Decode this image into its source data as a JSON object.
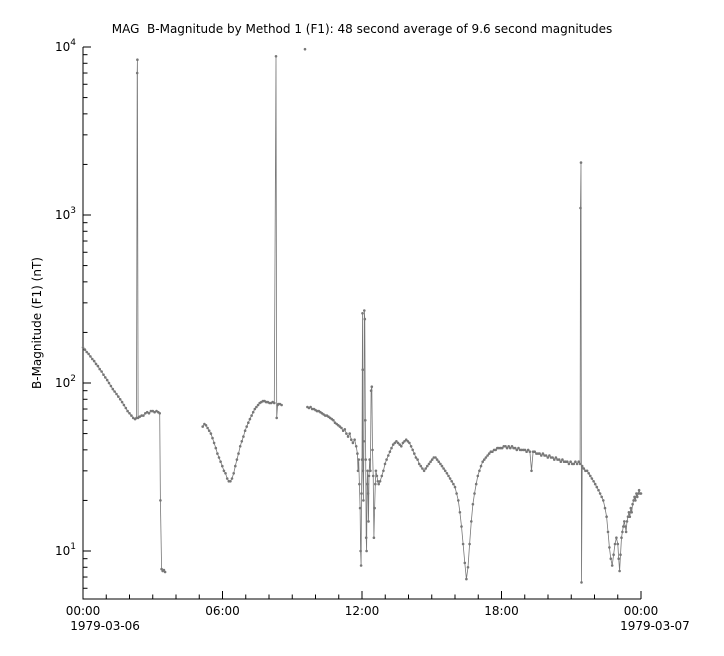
{
  "chart_data": {
    "type": "line",
    "title": "MAG  B-Magnitude by Method 1 (F1): 48 second average of 9.6 second magnitudes",
    "ylabel": "B-Magnitude (F1) (nT)",
    "y_scale": "log",
    "ylim": [
      5.2,
      10000
    ],
    "xlim_hours": [
      0,
      24
    ],
    "grid": false,
    "legend": "none",
    "series_color": "#777777",
    "axis_color": "#000000",
    "y_tick_base": "10",
    "y_tick_exponents": [
      1,
      2,
      3,
      4
    ],
    "x_ticks": [
      {
        "t": 0,
        "label": "00:00"
      },
      {
        "t": 6,
        "label": "06:00"
      },
      {
        "t": 12,
        "label": "12:00"
      },
      {
        "t": 18,
        "label": "18:00"
      },
      {
        "t": 24,
        "label": "00:00"
      }
    ],
    "x_dates": [
      {
        "label": "1979-03-06",
        "t": 0.95
      },
      {
        "label": "1979-03-07",
        "t": 24.6
      }
    ],
    "segments": [
      [
        [
          0.0,
          163
        ],
        [
          0.08,
          158
        ],
        [
          0.16,
          153
        ],
        [
          0.24,
          149
        ],
        [
          0.32,
          144
        ],
        [
          0.4,
          139
        ],
        [
          0.48,
          135
        ],
        [
          0.56,
          130
        ],
        [
          0.64,
          126
        ],
        [
          0.72,
          121
        ],
        [
          0.8,
          117
        ],
        [
          0.88,
          112
        ],
        [
          0.96,
          108
        ],
        [
          1.04,
          104
        ],
        [
          1.12,
          100
        ],
        [
          1.2,
          96
        ],
        [
          1.28,
          92
        ],
        [
          1.36,
          89
        ],
        [
          1.44,
          86
        ],
        [
          1.52,
          83
        ],
        [
          1.6,
          80
        ],
        [
          1.68,
          77
        ],
        [
          1.76,
          74
        ],
        [
          1.84,
          71
        ],
        [
          1.92,
          68
        ],
        [
          2.0,
          66
        ],
        [
          2.08,
          64
        ],
        [
          2.16,
          62
        ],
        [
          2.24,
          61
        ],
        [
          2.3,
          62
        ],
        [
          2.33,
          7000
        ],
        [
          2.34,
          8400
        ],
        [
          2.37,
          62
        ],
        [
          2.44,
          63
        ],
        [
          2.52,
          64
        ],
        [
          2.6,
          64
        ],
        [
          2.68,
          66
        ],
        [
          2.76,
          67
        ],
        [
          2.84,
          66
        ],
        [
          2.92,
          68
        ],
        [
          3.0,
          68
        ],
        [
          3.08,
          67
        ],
        [
          3.16,
          68
        ],
        [
          3.24,
          67
        ],
        [
          3.3,
          66
        ],
        [
          3.33,
          20
        ],
        [
          3.38,
          7.8
        ],
        [
          3.43,
          7.6
        ],
        [
          3.48,
          7.7
        ],
        [
          3.53,
          7.5
        ]
      ],
      [
        [
          5.15,
          55
        ],
        [
          5.22,
          57
        ],
        [
          5.29,
          56
        ],
        [
          5.36,
          54
        ],
        [
          5.43,
          52
        ],
        [
          5.5,
          50
        ],
        [
          5.57,
          47
        ],
        [
          5.64,
          44
        ],
        [
          5.71,
          41
        ],
        [
          5.78,
          38
        ],
        [
          5.85,
          36
        ],
        [
          5.92,
          34
        ],
        [
          5.99,
          32
        ],
        [
          6.06,
          30
        ],
        [
          6.13,
          29
        ],
        [
          6.2,
          27
        ],
        [
          6.27,
          26
        ],
        [
          6.34,
          26
        ],
        [
          6.41,
          27
        ],
        [
          6.48,
          29
        ],
        [
          6.55,
          32
        ],
        [
          6.62,
          35
        ],
        [
          6.69,
          38
        ],
        [
          6.76,
          42
        ],
        [
          6.83,
          45
        ],
        [
          6.9,
          48
        ],
        [
          6.97,
          52
        ],
        [
          7.04,
          55
        ],
        [
          7.11,
          58
        ],
        [
          7.18,
          61
        ],
        [
          7.25,
          64
        ],
        [
          7.32,
          67
        ],
        [
          7.39,
          70
        ],
        [
          7.46,
          72
        ],
        [
          7.53,
          74
        ],
        [
          7.6,
          76
        ],
        [
          7.67,
          77
        ],
        [
          7.74,
          78
        ],
        [
          7.81,
          78
        ],
        [
          7.88,
          77
        ],
        [
          7.95,
          77
        ],
        [
          8.02,
          76
        ],
        [
          8.09,
          76
        ],
        [
          8.16,
          77
        ],
        [
          8.23,
          76
        ],
        [
          8.3,
          8800
        ],
        [
          8.33,
          62
        ],
        [
          8.37,
          74
        ],
        [
          8.4,
          75
        ],
        [
          8.47,
          75
        ],
        [
          8.54,
          74
        ]
      ],
      [
        [
          9.55,
          9700
        ]
      ],
      [
        [
          9.65,
          72
        ],
        [
          9.72,
          71
        ],
        [
          9.79,
          72
        ],
        [
          9.86,
          70
        ],
        [
          9.93,
          70
        ],
        [
          10.0,
          69
        ],
        [
          10.07,
          68
        ],
        [
          10.14,
          68
        ],
        [
          10.21,
          67
        ],
        [
          10.28,
          66
        ],
        [
          10.35,
          65
        ],
        [
          10.42,
          64
        ],
        [
          10.49,
          64
        ],
        [
          10.56,
          63
        ],
        [
          10.63,
          62
        ],
        [
          10.7,
          61
        ],
        [
          10.77,
          60
        ],
        [
          10.84,
          58
        ],
        [
          10.91,
          57
        ],
        [
          10.98,
          56
        ],
        [
          11.05,
          55
        ],
        [
          11.12,
          54
        ],
        [
          11.19,
          52
        ],
        [
          11.26,
          53
        ],
        [
          11.33,
          50
        ],
        [
          11.4,
          48
        ],
        [
          11.47,
          50
        ],
        [
          11.54,
          46
        ],
        [
          11.61,
          44
        ],
        [
          11.68,
          46
        ],
        [
          11.75,
          42
        ],
        [
          11.8,
          38
        ],
        [
          11.83,
          30
        ],
        [
          11.86,
          35
        ],
        [
          11.89,
          25
        ],
        [
          11.92,
          18
        ],
        [
          11.94,
          10
        ],
        [
          11.96,
          8.2
        ],
        [
          11.98,
          22
        ],
        [
          12.0,
          35
        ],
        [
          12.02,
          260
        ],
        [
          12.03,
          120
        ],
        [
          12.04,
          30
        ],
        [
          12.06,
          20
        ],
        [
          12.08,
          45
        ],
        [
          12.1,
          270
        ],
        [
          12.12,
          240
        ],
        [
          12.14,
          60
        ],
        [
          12.16,
          35
        ],
        [
          12.18,
          12
        ],
        [
          12.2,
          10
        ],
        [
          12.22,
          25
        ],
        [
          12.24,
          30
        ],
        [
          12.26,
          22
        ],
        [
          12.28,
          15
        ],
        [
          12.3,
          28
        ],
        [
          12.33,
          35
        ],
        [
          12.36,
          30
        ],
        [
          12.39,
          90
        ],
        [
          12.42,
          95
        ],
        [
          12.45,
          40
        ],
        [
          12.48,
          28
        ],
        [
          12.51,
          12
        ],
        [
          12.54,
          18
        ],
        [
          12.57,
          25
        ],
        [
          12.6,
          30
        ],
        [
          12.64,
          28
        ],
        [
          12.68,
          26
        ],
        [
          12.72,
          25
        ],
        [
          12.78,
          26
        ],
        [
          12.85,
          28
        ],
        [
          12.92,
          30
        ],
        [
          12.99,
          33
        ],
        [
          13.06,
          35
        ],
        [
          13.13,
          37
        ],
        [
          13.2,
          39
        ],
        [
          13.27,
          41
        ],
        [
          13.34,
          43
        ],
        [
          13.41,
          44
        ],
        [
          13.48,
          45
        ],
        [
          13.55,
          44
        ],
        [
          13.62,
          43
        ],
        [
          13.69,
          42
        ],
        [
          13.76,
          44
        ],
        [
          13.83,
          45
        ],
        [
          13.9,
          46
        ],
        [
          13.97,
          45
        ],
        [
          14.04,
          44
        ],
        [
          14.11,
          42
        ],
        [
          14.18,
          40
        ],
        [
          14.25,
          38
        ],
        [
          14.32,
          36
        ],
        [
          14.39,
          35
        ],
        [
          14.46,
          33
        ],
        [
          14.53,
          32
        ],
        [
          14.6,
          31
        ],
        [
          14.67,
          30
        ],
        [
          14.74,
          31
        ],
        [
          14.81,
          32
        ],
        [
          14.88,
          33
        ],
        [
          14.95,
          34
        ],
        [
          15.02,
          35
        ],
        [
          15.09,
          36
        ],
        [
          15.16,
          36
        ],
        [
          15.23,
          35
        ],
        [
          15.3,
          34
        ],
        [
          15.37,
          33
        ],
        [
          15.44,
          32
        ],
        [
          15.51,
          31
        ],
        [
          15.58,
          30
        ],
        [
          15.65,
          29
        ],
        [
          15.72,
          28
        ],
        [
          15.79,
          27
        ],
        [
          15.86,
          26
        ],
        [
          15.93,
          25
        ],
        [
          16.0,
          24
        ],
        [
          16.07,
          22
        ],
        [
          16.14,
          20
        ],
        [
          16.21,
          17
        ],
        [
          16.28,
          14
        ],
        [
          16.35,
          11
        ],
        [
          16.42,
          8.5
        ],
        [
          16.49,
          6.8
        ],
        [
          16.56,
          8
        ],
        [
          16.63,
          11
        ],
        [
          16.7,
          15
        ],
        [
          16.77,
          19
        ],
        [
          16.84,
          22
        ],
        [
          16.91,
          25
        ],
        [
          16.98,
          28
        ],
        [
          17.05,
          30
        ],
        [
          17.12,
          32
        ],
        [
          17.19,
          34
        ],
        [
          17.26,
          35
        ],
        [
          17.33,
          36
        ],
        [
          17.4,
          37
        ],
        [
          17.47,
          38
        ],
        [
          17.54,
          39
        ],
        [
          17.61,
          39
        ],
        [
          17.68,
          40
        ],
        [
          17.75,
          40
        ],
        [
          17.82,
          41
        ],
        [
          17.89,
          41
        ],
        [
          17.96,
          41
        ],
        [
          18.03,
          41
        ],
        [
          18.1,
          42
        ],
        [
          18.17,
          42
        ],
        [
          18.24,
          41
        ],
        [
          18.31,
          42
        ],
        [
          18.38,
          41
        ],
        [
          18.45,
          42
        ],
        [
          18.52,
          41
        ],
        [
          18.59,
          41
        ],
        [
          18.66,
          40
        ],
        [
          18.73,
          41
        ],
        [
          18.8,
          40
        ],
        [
          18.87,
          40
        ],
        [
          18.94,
          40
        ],
        [
          19.01,
          40
        ],
        [
          19.08,
          39
        ],
        [
          19.15,
          40
        ],
        [
          19.22,
          39
        ],
        [
          19.29,
          30
        ],
        [
          19.36,
          39
        ],
        [
          19.43,
          39
        ],
        [
          19.5,
          38
        ],
        [
          19.57,
          38
        ],
        [
          19.64,
          38
        ],
        [
          19.71,
          37
        ],
        [
          19.78,
          38
        ],
        [
          19.85,
          37
        ],
        [
          19.92,
          37
        ],
        [
          19.99,
          36
        ],
        [
          20.06,
          37
        ],
        [
          20.13,
          36
        ],
        [
          20.2,
          36
        ],
        [
          20.27,
          35
        ],
        [
          20.34,
          36
        ],
        [
          20.41,
          35
        ],
        [
          20.48,
          35
        ],
        [
          20.55,
          34
        ],
        [
          20.62,
          35
        ],
        [
          20.69,
          34
        ],
        [
          20.76,
          34
        ],
        [
          20.83,
          34
        ],
        [
          20.9,
          33
        ],
        [
          20.97,
          34
        ],
        [
          21.04,
          33
        ],
        [
          21.11,
          33
        ],
        [
          21.18,
          34
        ],
        [
          21.25,
          33
        ],
        [
          21.32,
          34
        ],
        [
          21.38,
          33
        ],
        [
          21.4,
          1100
        ],
        [
          21.42,
          2050
        ],
        [
          21.44,
          6.5
        ],
        [
          21.47,
          32
        ],
        [
          21.54,
          31
        ],
        [
          21.61,
          30
        ],
        [
          21.68,
          30
        ],
        [
          21.75,
          29
        ],
        [
          21.82,
          28
        ],
        [
          21.89,
          27
        ],
        [
          21.96,
          26
        ],
        [
          22.03,
          25
        ],
        [
          22.1,
          24
        ],
        [
          22.17,
          23
        ],
        [
          22.24,
          22
        ],
        [
          22.31,
          21
        ],
        [
          22.38,
          20
        ],
        [
          22.45,
          18
        ],
        [
          22.52,
          16
        ],
        [
          22.58,
          13
        ],
        [
          22.64,
          10.5
        ],
        [
          22.7,
          9
        ],
        [
          22.76,
          8.2
        ],
        [
          22.82,
          9.5
        ],
        [
          22.88,
          11
        ],
        [
          22.94,
          12
        ],
        [
          23.0,
          11
        ],
        [
          23.04,
          9
        ],
        [
          23.08,
          7.6
        ],
        [
          23.12,
          9.5
        ],
        [
          23.16,
          12
        ],
        [
          23.2,
          13
        ],
        [
          23.24,
          14
        ],
        [
          23.28,
          15
        ],
        [
          23.32,
          14
        ],
        [
          23.36,
          13
        ],
        [
          23.4,
          15
        ],
        [
          23.44,
          16
        ],
        [
          23.48,
          17
        ],
        [
          23.52,
          16
        ],
        [
          23.56,
          18
        ],
        [
          23.6,
          17
        ],
        [
          23.64,
          19
        ],
        [
          23.68,
          20
        ],
        [
          23.72,
          21
        ],
        [
          23.76,
          20
        ],
        [
          23.8,
          22
        ],
        [
          23.84,
          21
        ],
        [
          23.88,
          22
        ],
        [
          23.92,
          23
        ],
        [
          23.96,
          22
        ],
        [
          24.0,
          22
        ]
      ]
    ]
  }
}
